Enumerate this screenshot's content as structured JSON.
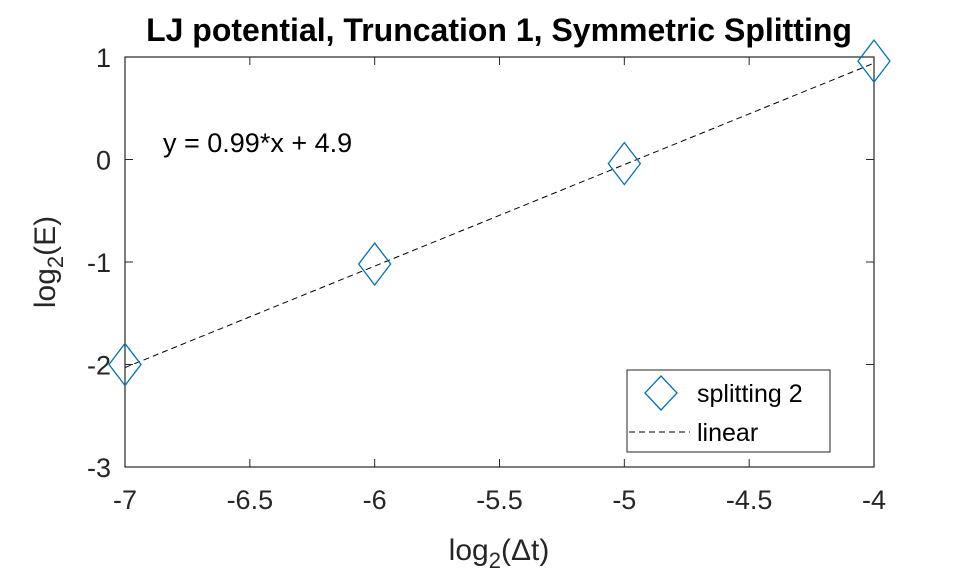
{
  "chart_data": {
    "type": "scatter",
    "title": "LJ potential, Truncation 1, Symmetric Splitting",
    "xlabel": {
      "base": "log",
      "sub": "2",
      "arg": "(Δt)"
    },
    "ylabel": {
      "base": "log",
      "sub": "2",
      "arg": "(E)"
    },
    "xlim": [
      -7,
      -4
    ],
    "ylim": [
      -3,
      1
    ],
    "xticks": [
      -7,
      -6.5,
      -6,
      -5.5,
      -5,
      -4.5,
      -4
    ],
    "xtick_labels": [
      "-7",
      "-6.5",
      "-6",
      "-5.5",
      "-5",
      "-4.5",
      "-4"
    ],
    "yticks": [
      -3,
      -2,
      -1,
      0,
      1
    ],
    "ytick_labels": [
      "-3",
      "-2",
      "-1",
      "0",
      "1"
    ],
    "grid": false,
    "legend_position": "bottom-right",
    "series": [
      {
        "name": "splitting 2",
        "marker": "diamond",
        "color": "#0072BD",
        "x": [
          -7,
          -6,
          -5,
          -4
        ],
        "y": [
          -2.0,
          -1.02,
          -0.04,
          0.96
        ]
      },
      {
        "name": "linear",
        "style": "dashed",
        "color": "#000000",
        "x": [
          -7,
          -4
        ],
        "y": [
          -2.03,
          0.94
        ]
      }
    ],
    "annotation": {
      "text": "y = 0.99*x + 4.9",
      "x": -6.85,
      "y": 0.15
    }
  }
}
